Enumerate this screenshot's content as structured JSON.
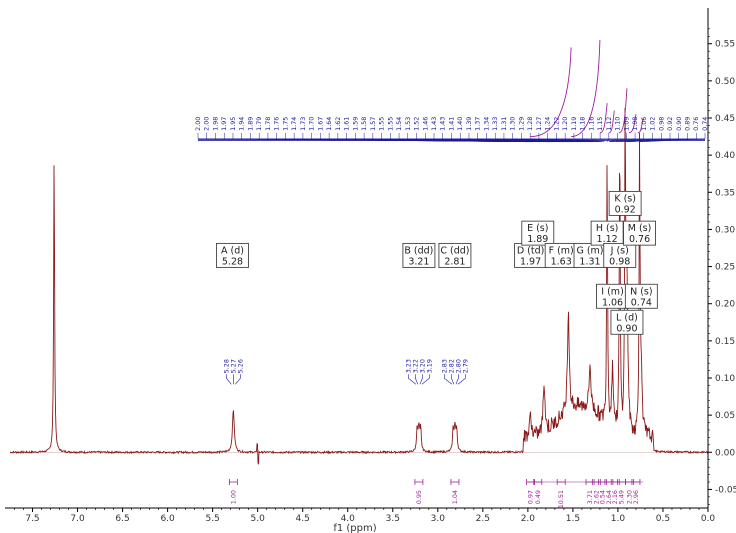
{
  "chart_data": {
    "type": "line",
    "title": "",
    "xlabel": "f1 (ppm)",
    "ylabel": "",
    "xlim": [
      7.75,
      0.0
    ],
    "ylim": [
      -0.075,
      0.59
    ],
    "x_ticks": [
      "7.5",
      "7.0",
      "6.5",
      "6.0",
      "5.5",
      "5.0",
      "4.5",
      "4.0",
      "3.5",
      "3.0",
      "2.5",
      "2.0",
      "1.5",
      "1.0",
      "0.5",
      "0.0"
    ],
    "y_ticks": [
      "0.55",
      "0.50",
      "0.45",
      "0.40",
      "0.35",
      "0.30",
      "0.25",
      "0.20",
      "0.15",
      "0.10",
      "0.05",
      "0.00",
      "-0.05"
    ],
    "colors": {
      "spectrum": "#8b1a1a",
      "peak_labels": "#1a1aa0",
      "integrals": "#a0209a",
      "axis": "#000000"
    },
    "spectrum_peaks": [
      {
        "ppm": 7.26,
        "height": 0.41
      },
      {
        "ppm": 5.27,
        "height": 0.058
      },
      {
        "ppm": 3.21,
        "height": 0.034
      },
      {
        "ppm": 2.81,
        "height": 0.035
      },
      {
        "ppm": 1.97,
        "height": 0.03
      },
      {
        "ppm": 1.82,
        "height": 0.07
      },
      {
        "ppm": 1.55,
        "height": 0.135
      },
      {
        "ppm": 1.31,
        "height": 0.06
      },
      {
        "ppm": 1.12,
        "height": 0.37
      },
      {
        "ppm": 1.06,
        "height": 0.08
      },
      {
        "ppm": 0.98,
        "height": 0.4
      },
      {
        "ppm": 0.92,
        "height": 0.41
      },
      {
        "ppm": 0.9,
        "height": 0.2
      },
      {
        "ppm": 0.76,
        "height": 0.4
      },
      {
        "ppm": 0.74,
        "height": 0.08
      }
    ],
    "multiplets": [
      {
        "label": "A (d)",
        "shift": "5.28",
        "ppm": 5.28,
        "y": 0.265
      },
      {
        "label": "B (dd)",
        "shift": "3.21",
        "ppm": 3.21,
        "y": 0.265
      },
      {
        "label": "C (dd)",
        "shift": "2.81",
        "ppm": 2.81,
        "y": 0.265
      },
      {
        "label": "D (td)",
        "shift": "1.97",
        "ppm": 1.97,
        "y": 0.265
      },
      {
        "label": "E (s)",
        "shift": "1.89",
        "ppm": 1.89,
        "y": 0.295
      },
      {
        "label": "F (m)",
        "shift": "1.63",
        "ppm": 1.63,
        "y": 0.265
      },
      {
        "label": "G (m)",
        "shift": "1.31",
        "ppm": 1.31,
        "y": 0.265
      },
      {
        "label": "H (s)",
        "shift": "1.12",
        "ppm": 1.12,
        "y": 0.295
      },
      {
        "label": "I (m)",
        "shift": "1.06",
        "ppm": 1.06,
        "y": 0.21
      },
      {
        "label": "J (s)",
        "shift": "0.98",
        "ppm": 0.98,
        "y": 0.265
      },
      {
        "label": "K (s)",
        "shift": "0.92",
        "ppm": 0.92,
        "y": 0.335
      },
      {
        "label": "L (d)",
        "shift": "0.90",
        "ppm": 0.9,
        "y": 0.175
      },
      {
        "label": "M (s)",
        "shift": "0.76",
        "ppm": 0.76,
        "y": 0.295
      },
      {
        "label": "N (s)",
        "shift": "0.74",
        "ppm": 0.74,
        "y": 0.21
      }
    ],
    "peak_labels_low": [
      {
        "ppm": 5.27,
        "values": [
          "5.28",
          "5.27",
          "5.26"
        ]
      },
      {
        "ppm": 3.21,
        "values": [
          "3.23",
          "3.22",
          "3.20",
          "3.19"
        ]
      },
      {
        "ppm": 2.81,
        "values": [
          "2.83",
          "2.82",
          "2.80",
          "2.79"
        ]
      }
    ],
    "peak_labels_high": [
      "2.00",
      "2.00",
      "1.98",
      "1.97",
      "1.95",
      "1.94",
      "1.89",
      "1.79",
      "1.78",
      "1.76",
      "1.75",
      "1.74",
      "1.73",
      "1.70",
      "1.67",
      "1.64",
      "1.62",
      "1.61",
      "1.59",
      "1.58",
      "1.57",
      "1.55",
      "1.55",
      "1.54",
      "1.53",
      "1.52",
      "1.46",
      "1.43",
      "1.43",
      "1.41",
      "1.40",
      "1.39",
      "1.37",
      "1.34",
      "1.33",
      "1.31",
      "1.30",
      "1.29",
      "1.28",
      "1.27",
      "1.24",
      "1.22",
      "1.20",
      "1.19",
      "1.18",
      "1.16",
      "1.15",
      "1.12",
      "1.10",
      "1.09",
      "1.08",
      "1.06",
      "1.02",
      "0.98",
      "0.92",
      "0.90",
      "0.89",
      "0.76",
      "0.74"
    ],
    "integrals": [
      {
        "ppm": 5.27,
        "value": "1.00"
      },
      {
        "ppm": 3.21,
        "value": "0.95"
      },
      {
        "ppm": 2.81,
        "value": "1.04"
      },
      {
        "ppm": 1.97,
        "value": "0.97"
      },
      {
        "ppm": 1.89,
        "value": "0.49"
      },
      {
        "ppm": 1.63,
        "value": "10.51"
      },
      {
        "ppm": 1.31,
        "value": "3.71"
      },
      {
        "ppm": 1.24,
        "value": "2.62"
      },
      {
        "ppm": 1.17,
        "value": "0.54"
      },
      {
        "ppm": 1.1,
        "value": "2.64"
      },
      {
        "ppm": 1.03,
        "value": "2.16"
      },
      {
        "ppm": 0.96,
        "value": "5.49"
      },
      {
        "ppm": 0.87,
        "value": "2.30"
      },
      {
        "ppm": 0.8,
        "value": "2.96"
      }
    ]
  }
}
